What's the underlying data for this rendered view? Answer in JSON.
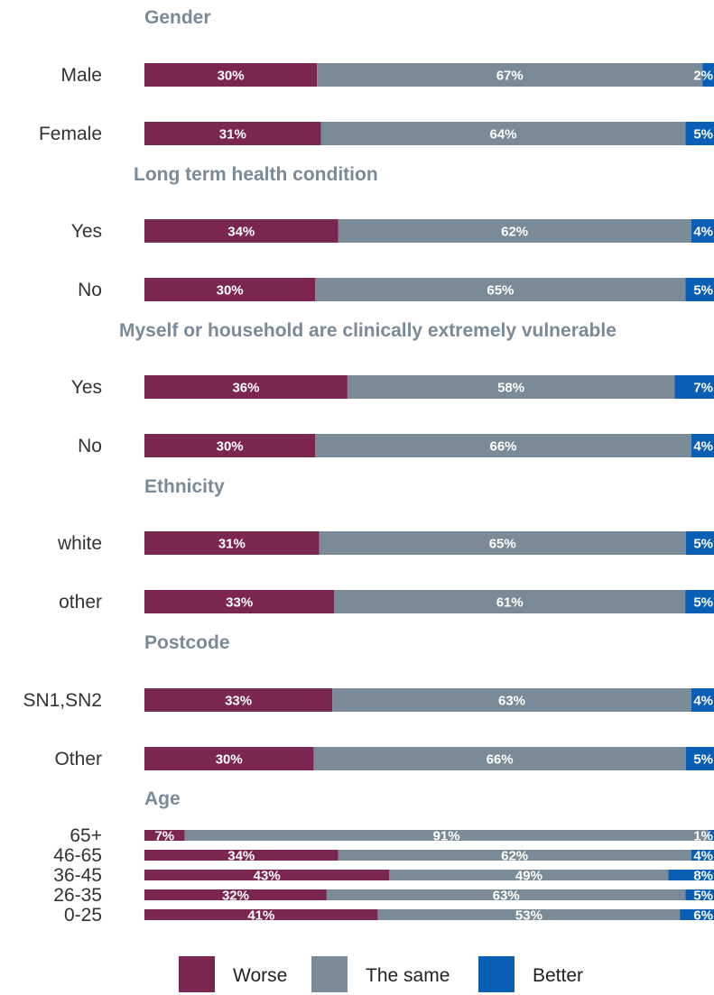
{
  "chart_data": {
    "type": "bar",
    "orientation": "horizontal",
    "stacked": "100%",
    "series": [
      {
        "name": "Worse",
        "color": "#7b2650"
      },
      {
        "name": "The same",
        "color": "#7a8a96"
      },
      {
        "name": "Better",
        "color": "#0a5fb4"
      }
    ],
    "groups": [
      {
        "title": "Gender",
        "rows": [
          {
            "label": "Male",
            "values": [
              30,
              67,
              2
            ],
            "labels": [
              "30%",
              "67%",
              "2%"
            ]
          },
          {
            "label": "Female",
            "values": [
              31,
              64,
              5
            ],
            "labels": [
              "31%",
              "64%",
              "5%"
            ]
          }
        ]
      },
      {
        "title": "Long term health condition",
        "rows": [
          {
            "label": "Yes",
            "values": [
              34,
              62,
              4
            ],
            "labels": [
              "34%",
              "62%",
              "4%"
            ]
          },
          {
            "label": "No",
            "values": [
              30,
              65,
              5
            ],
            "labels": [
              "30%",
              "65%",
              "5%"
            ]
          }
        ]
      },
      {
        "title": "Myself or household are clinically extremely vulnerable",
        "rows": [
          {
            "label": "Yes",
            "values": [
              36,
              58,
              7
            ],
            "labels": [
              "36%",
              "58%",
              "7%"
            ]
          },
          {
            "label": "No",
            "values": [
              30,
              66,
              4
            ],
            "labels": [
              "30%",
              "66%",
              "4%"
            ]
          }
        ]
      },
      {
        "title": "Ethnicity",
        "rows": [
          {
            "label": "white",
            "values": [
              31,
              65,
              5
            ],
            "labels": [
              "31%",
              "65%",
              "5%"
            ]
          },
          {
            "label": "other",
            "values": [
              33,
              61,
              5
            ],
            "labels": [
              "33%",
              "61%",
              "5%"
            ]
          }
        ]
      },
      {
        "title": "Postcode",
        "rows": [
          {
            "label": "SN1,SN2",
            "values": [
              33,
              63,
              4
            ],
            "labels": [
              "33%",
              "63%",
              "4%"
            ]
          },
          {
            "label": "Other",
            "values": [
              30,
              66,
              5
            ],
            "labels": [
              "30%",
              "66%",
              "5%"
            ]
          }
        ]
      },
      {
        "title": "Age",
        "compact": true,
        "rows": [
          {
            "label": "65+",
            "values": [
              7,
              91,
              1
            ],
            "labels": [
              "7%",
              "91%",
              "1%"
            ]
          },
          {
            "label": "46-65",
            "values": [
              34,
              62,
              4
            ],
            "labels": [
              "34%",
              "62%",
              "4%"
            ]
          },
          {
            "label": "36-45",
            "values": [
              43,
              49,
              8
            ],
            "labels": [
              "43%",
              "49%",
              "8%"
            ]
          },
          {
            "label": "26-35",
            "values": [
              32,
              63,
              5
            ],
            "labels": [
              "32%",
              "63%",
              "5%"
            ]
          },
          {
            "label": "0-25",
            "values": [
              41,
              53,
              6
            ],
            "labels": [
              "41%",
              "53%",
              "6%"
            ]
          }
        ]
      }
    ],
    "legend": [
      "Worse",
      "The same",
      "Better"
    ],
    "legend_position": "bottom"
  }
}
